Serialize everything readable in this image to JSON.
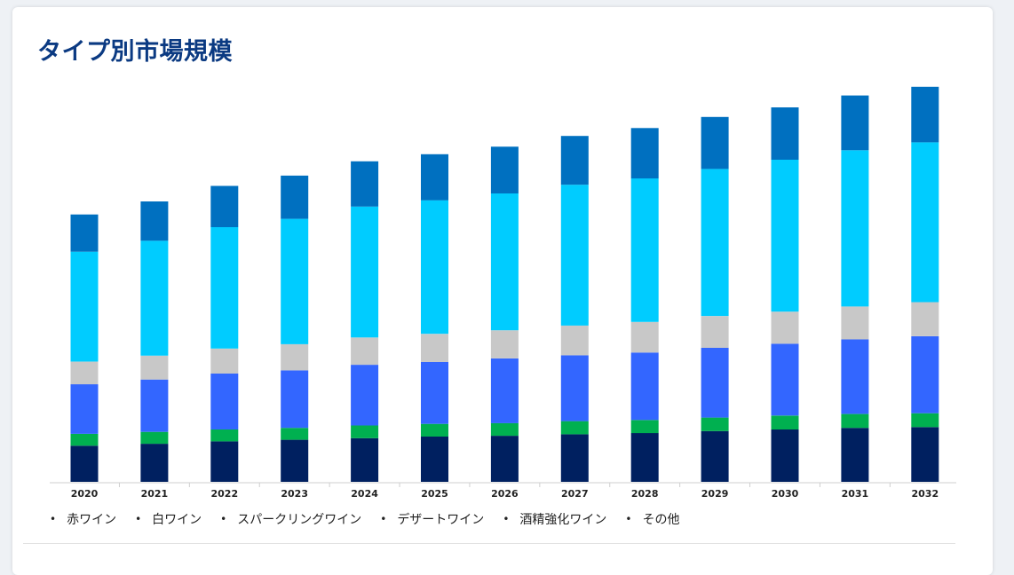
{
  "header": {
    "title": "タイプ別市場規模"
  },
  "chart_data": {
    "type": "bar",
    "stacked": true,
    "title": "タイプ別市場規模",
    "xlabel": "",
    "ylabel": "",
    "ylim": [
      0,
      100
    ],
    "grid": false,
    "legend_position": "bottom",
    "categories": [
      "2020",
      "2021",
      "2022",
      "2023",
      "2024",
      "2025",
      "2026",
      "2027",
      "2028",
      "2029",
      "2030",
      "2031",
      "2032"
    ],
    "series": [
      {
        "name": "赤ワイン",
        "color": "#002060",
        "values": [
          9.1,
          9.6,
          10.2,
          10.6,
          11.0,
          11.4,
          11.6,
          12.0,
          12.3,
          12.8,
          13.2,
          13.6,
          13.8
        ]
      },
      {
        "name": "白ワイン",
        "color": "#00b050",
        "values": [
          3.0,
          3.0,
          3.0,
          3.0,
          3.2,
          3.2,
          3.2,
          3.3,
          3.3,
          3.4,
          3.5,
          3.5,
          3.5
        ]
      },
      {
        "name": "スパークリングワイン",
        "color": "#3366ff",
        "values": [
          12.5,
          13.2,
          14.1,
          14.5,
          15.3,
          15.6,
          16.3,
          16.6,
          17.0,
          17.6,
          18.1,
          18.8,
          19.4
        ]
      },
      {
        "name": "デザートワイン",
        "color": "#c8c8c8",
        "values": [
          5.7,
          6.0,
          6.3,
          6.6,
          6.9,
          7.1,
          7.1,
          7.5,
          7.7,
          8.0,
          8.1,
          8.3,
          8.6
        ]
      },
      {
        "name": "酒精強化ワイン",
        "color": "#00ccff",
        "values": [
          27.7,
          29.0,
          30.6,
          31.6,
          33.0,
          33.7,
          34.5,
          35.5,
          36.2,
          37.1,
          38.3,
          39.4,
          40.3
        ]
      },
      {
        "name": "その他",
        "color": "#0070c0",
        "values": [
          9.4,
          9.9,
          10.4,
          10.9,
          11.4,
          11.6,
          11.8,
          12.3,
          12.7,
          13.1,
          13.2,
          13.8,
          14.0
        ]
      }
    ]
  }
}
